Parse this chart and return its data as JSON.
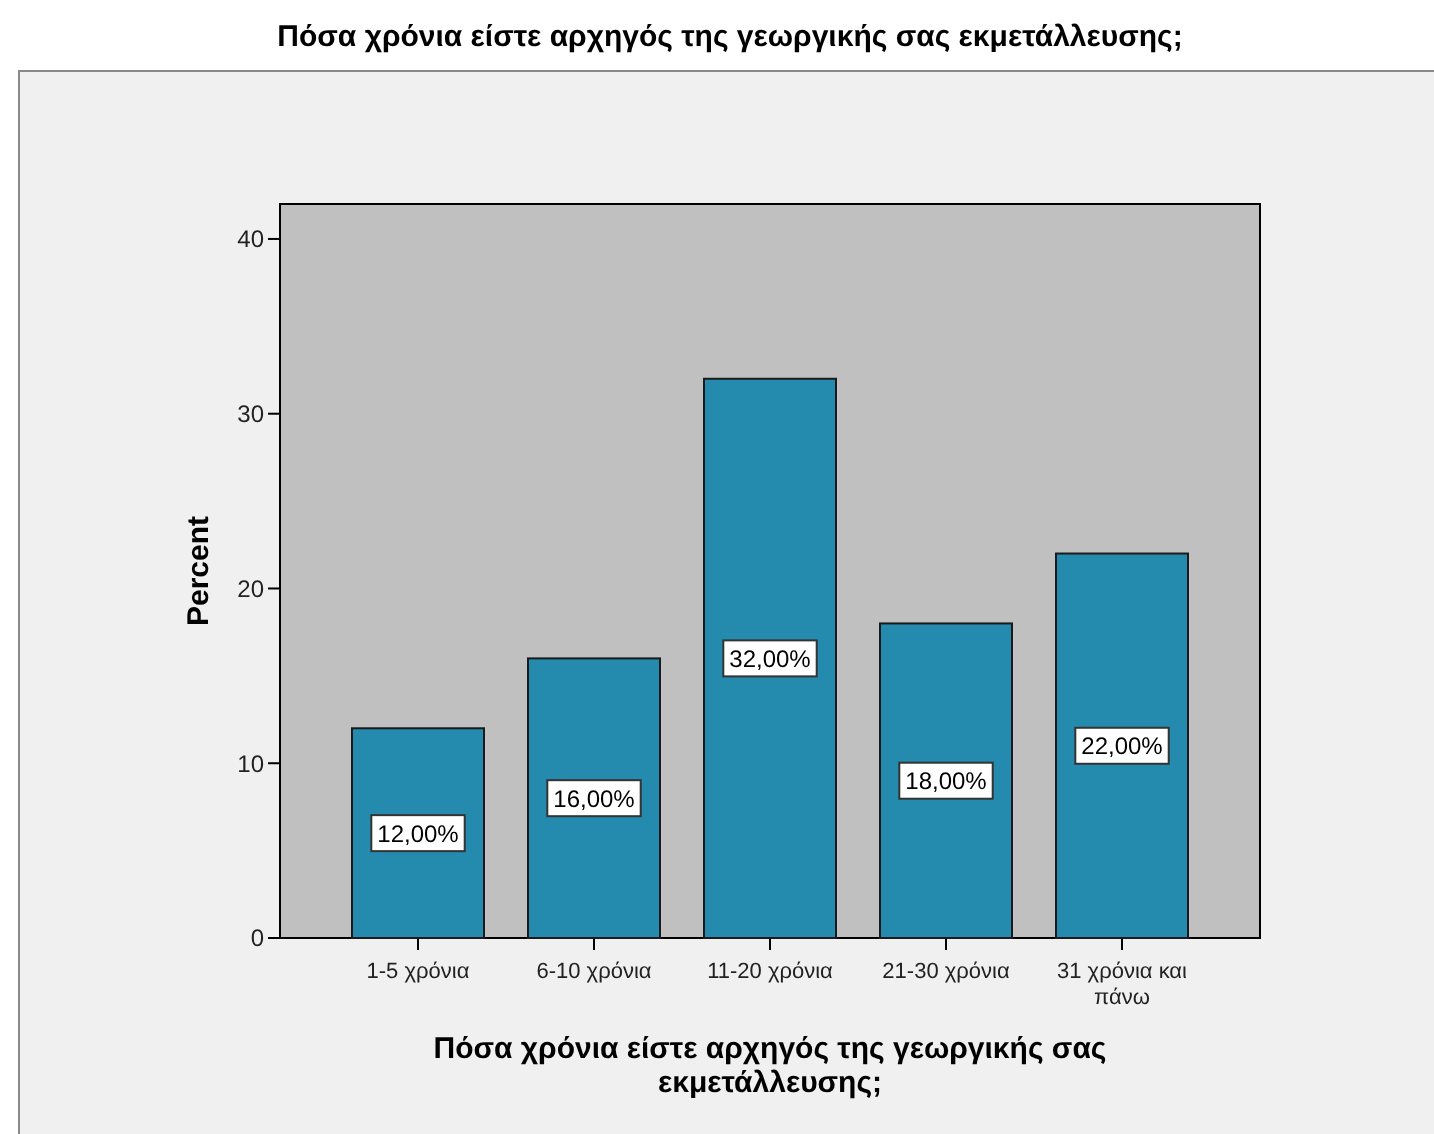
{
  "chart_data": {
    "type": "bar",
    "title": "Πόσα χρόνια είστε αρχηγός της γεωργικής σας εκμετάλλευσης;",
    "xlabel": "Πόσα χρόνια είστε αρχηγός της γεωργικής σας εκμετάλλευσης;",
    "ylabel": "Percent",
    "categories": [
      "1-5 χρόνια",
      "6-10 χρόνια",
      "11-20 χρόνια",
      "21-30 χρόνια",
      "31 χρόνια και πάνω"
    ],
    "values": [
      12,
      16,
      32,
      18,
      22
    ],
    "color": "#248bae",
    "value_labels": [
      "12,00%",
      "16,00%",
      "32,00%",
      "18,00%",
      "22,00%"
    ],
    "ylim": [
      0,
      42
    ],
    "yticks": [
      0,
      10,
      20,
      30,
      40
    ]
  }
}
